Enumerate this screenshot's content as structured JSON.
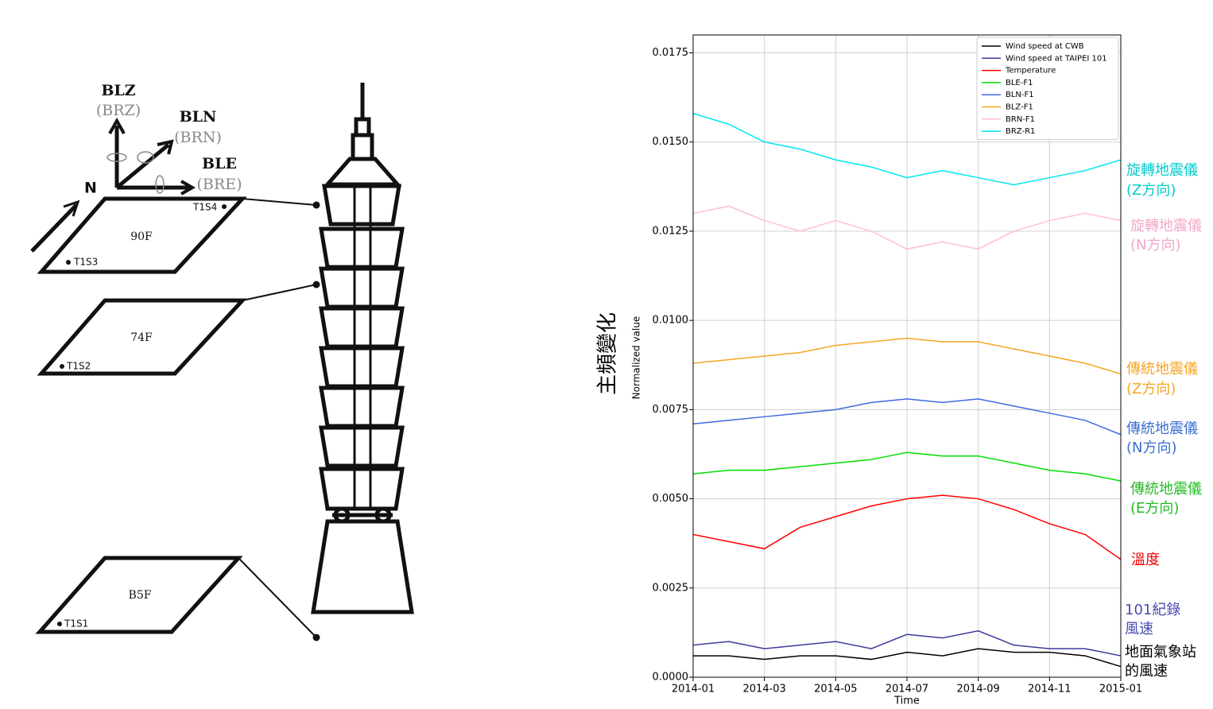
{
  "diagram": {
    "floors": [
      {
        "label": "90F",
        "sensors": [
          "T1S3",
          "T1S4"
        ]
      },
      {
        "label": "74F",
        "sensors": [
          "T1S2"
        ]
      },
      {
        "label": "B5F",
        "sensors": [
          "T1S1"
        ]
      }
    ],
    "north": "N",
    "axes": [
      {
        "name": "BLZ",
        "alt": "(BRZ)"
      },
      {
        "name": "BLN",
        "alt": "(BRN)"
      },
      {
        "name": "BLE",
        "alt": "(BRE)"
      }
    ]
  },
  "chart_data": {
    "type": "line",
    "ylabel": "Normalized value",
    "ylabel_cn": "主頻變化",
    "xlabel": "Time",
    "x": [
      "2014-01",
      "2014-02",
      "2014-03",
      "2014-04",
      "2014-05",
      "2014-06",
      "2014-07",
      "2014-08",
      "2014-09",
      "2014-10",
      "2014-11",
      "2014-12",
      "2015-01"
    ],
    "xlim": [
      "2014-01",
      "2015-01"
    ],
    "xticks": [
      "2014-01",
      "2014-03",
      "2014-05",
      "2014-07",
      "2014-09",
      "2014-11",
      "2015-01"
    ],
    "ylim": [
      0,
      0.018
    ],
    "yticks": [
      {
        "value": 0,
        "label": "0.0000"
      },
      {
        "value": 0.0025,
        "label": "0.0025"
      },
      {
        "value": 0.005,
        "label": "0.0050"
      },
      {
        "value": 0.0075,
        "label": "0.0075"
      },
      {
        "value": 0.01,
        "label": "0.0100"
      },
      {
        "value": 0.0125,
        "label": "0.0125"
      },
      {
        "value": 0.015,
        "label": "0.0150"
      },
      {
        "value": 0.0175,
        "label": "0.0175"
      }
    ],
    "grid": true,
    "legend": "upper right",
    "series": [
      {
        "name": "Wind speed at CWB",
        "color": "#000000",
        "values": [
          0.0006,
          0.0006,
          0.0005,
          0.0006,
          0.0006,
          0.0005,
          0.0007,
          0.0006,
          0.0008,
          0.0007,
          0.0007,
          0.0006,
          0.0003
        ]
      },
      {
        "name": "Wind speed at TAIPEI 101",
        "color": "#3b3b9a",
        "values": [
          0.0009,
          0.001,
          0.0008,
          0.0009,
          0.001,
          0.0008,
          0.0012,
          0.0011,
          0.0013,
          0.0009,
          0.0008,
          0.0008,
          0.0006
        ]
      },
      {
        "name": "Temperature",
        "color": "#ff0000",
        "values": [
          0.004,
          0.0038,
          0.0036,
          0.0042,
          0.0045,
          0.0048,
          0.005,
          0.0051,
          0.005,
          0.0047,
          0.0043,
          0.004,
          0.0033
        ]
      },
      {
        "name": "BLE-F1",
        "color": "#00dd00",
        "values": [
          0.0057,
          0.0058,
          0.0058,
          0.0059,
          0.006,
          0.0061,
          0.0063,
          0.0062,
          0.0062,
          0.006,
          0.0058,
          0.0057,
          0.0055
        ]
      },
      {
        "name": "BLN-F1",
        "color": "#4169e1",
        "values": [
          0.0071,
          0.0072,
          0.0073,
          0.0074,
          0.0075,
          0.0077,
          0.0078,
          0.0077,
          0.0078,
          0.0076,
          0.0074,
          0.0072,
          0.0068
        ]
      },
      {
        "name": "BLZ-F1",
        "color": "#f5a623",
        "values": [
          0.0088,
          0.0089,
          0.009,
          0.0091,
          0.0093,
          0.0094,
          0.0095,
          0.0094,
          0.0094,
          0.0092,
          0.009,
          0.0088,
          0.0085
        ]
      },
      {
        "name": "BRN-F1",
        "color": "#ffc0cb",
        "values": [
          0.013,
          0.0132,
          0.0128,
          0.0125,
          0.0128,
          0.0125,
          0.012,
          0.0122,
          0.012,
          0.0125,
          0.0128,
          0.013,
          0.0128
        ]
      },
      {
        "name": "BRZ-R1",
        "color": "#00e5ee",
        "values": [
          0.0158,
          0.0155,
          0.015,
          0.0148,
          0.0145,
          0.0143,
          0.014,
          0.0142,
          0.014,
          0.0138,
          0.014,
          0.0142,
          0.0145
        ]
      }
    ],
    "annotations": [
      {
        "lines": [
          "旋轉地震儀",
          "(Z方向)"
        ],
        "color": "#00cccc"
      },
      {
        "lines": [
          "旋轉地震儀",
          "(N方向)"
        ],
        "color": "#f0a8c8"
      },
      {
        "lines": [
          "傳統地震儀",
          "(Z方向)"
        ],
        "color": "#f5a623"
      },
      {
        "lines": [
          "傳統地震儀",
          "(N方向)"
        ],
        "color": "#3a6fd0"
      },
      {
        "lines": [
          "傳統地震儀",
          "(E方向)"
        ],
        "color": "#22bb22"
      },
      {
        "lines": [
          "溫度"
        ],
        "color": "#ee0000"
      },
      {
        "lines": [
          "101紀錄",
          "風速"
        ],
        "color": "#4a4ab0"
      },
      {
        "lines": [
          "地面氣象站",
          "的風速"
        ],
        "color": "#000000"
      }
    ]
  }
}
